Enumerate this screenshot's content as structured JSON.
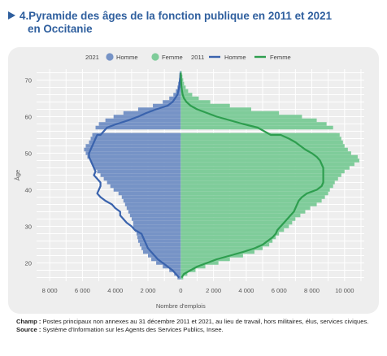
{
  "figure": {
    "number": "4.",
    "title_line1": "Pyramide des âges de la fonction publique en 2011 et 2021",
    "title_line2": "en Occitanie"
  },
  "legend": {
    "group_2021": "2021",
    "group_2011": "2011",
    "homme": "Homme",
    "femme": "Femme"
  },
  "footnotes": {
    "champ_label": "Champ :",
    "champ_text": " Postes principaux non annexes au 31 décembre 2011 et 2021, au lieu de travail, hors militaires, élus, services civiques.",
    "source_label": "Source :",
    "source_text": " Système d'Information sur les Agents des Services Publics, Insee."
  },
  "colors": {
    "title": "#2f5f9e",
    "men_2021": "#7693c6",
    "women_2021": "#7fcc9a",
    "men_2011": "#3a63ad",
    "women_2011": "#2e9e4f",
    "grid": "#ffffff",
    "axis_text": "#555555",
    "panel": "#eeeeee"
  },
  "chart_data": {
    "type": "bar",
    "orientation": "horizontal-pyramid",
    "xlabel": "Nombre d'emplois",
    "ylabel": "Âge",
    "x_ticks": [
      {
        "value": -8000,
        "label": "8 000"
      },
      {
        "value": -6000,
        "label": "6 000"
      },
      {
        "value": -4000,
        "label": "4 000"
      },
      {
        "value": -2000,
        "label": "2 000"
      },
      {
        "value": 0,
        "label": "0"
      },
      {
        "value": 2000,
        "label": "2 000"
      },
      {
        "value": 4000,
        "label": "4 000"
      },
      {
        "value": 6000,
        "label": "6 000"
      },
      {
        "value": 8000,
        "label": "8 000"
      },
      {
        "value": 10000,
        "label": "10 000"
      }
    ],
    "y_ticks": [
      20,
      30,
      40,
      50,
      60,
      70
    ],
    "xlim": [
      -8800,
      11200
    ],
    "ylim": [
      15,
      73
    ],
    "grid": true,
    "legend_position": "top",
    "ages": [
      16,
      17,
      18,
      19,
      20,
      21,
      22,
      23,
      24,
      25,
      26,
      27,
      28,
      29,
      30,
      31,
      32,
      33,
      34,
      35,
      36,
      37,
      38,
      39,
      40,
      41,
      42,
      43,
      44,
      45,
      46,
      47,
      48,
      49,
      50,
      51,
      52,
      53,
      54,
      55,
      55,
      57,
      58,
      59,
      60,
      61,
      62,
      63,
      64,
      65,
      66,
      67,
      68,
      69,
      70,
      71,
      72
    ],
    "series": [
      {
        "name": "Homme",
        "year": "2021",
        "kind": "bar",
        "values": [
          200,
          400,
          700,
          1100,
          1500,
          1800,
          2000,
          2300,
          2400,
          2500,
          2600,
          2650,
          2700,
          2800,
          2900,
          2900,
          3000,
          3100,
          3200,
          3300,
          3400,
          3500,
          3600,
          3800,
          4100,
          4300,
          4500,
          4700,
          4900,
          5100,
          5300,
          5400,
          5500,
          5700,
          5800,
          5900,
          5800,
          5600,
          5500,
          5400,
          5300,
          5200,
          5000,
          4600,
          4100,
          3500,
          2600,
          1700,
          1100,
          700,
          450,
          300,
          200,
          150,
          100,
          80,
          60
        ]
      },
      {
        "name": "Femme",
        "year": "2021",
        "kind": "bar",
        "values": [
          150,
          400,
          900,
          1500,
          2300,
          3000,
          3800,
          4500,
          5000,
          5400,
          5600,
          5800,
          6000,
          6300,
          6600,
          6800,
          7000,
          7300,
          7600,
          7900,
          8300,
          8600,
          8800,
          9000,
          9100,
          9300,
          9400,
          9600,
          9800,
          10000,
          10300,
          10600,
          10900,
          10800,
          10400,
          10200,
          10000,
          9900,
          9800,
          9700,
          9500,
          9300,
          8900,
          8300,
          7400,
          6000,
          4300,
          3000,
          1800,
          1100,
          700,
          450,
          300,
          200,
          150,
          100,
          60
        ]
      },
      {
        "name": "Homme",
        "year": "2011",
        "kind": "line",
        "values": [
          100,
          300,
          500,
          800,
          1100,
          1400,
          1600,
          1800,
          2000,
          2100,
          2200,
          2300,
          2400,
          2800,
          3000,
          3300,
          3500,
          3700,
          3700,
          4000,
          4200,
          4600,
          4900,
          5100,
          5000,
          4900,
          4900,
          5100,
          5300,
          5200,
          5300,
          5400,
          5500,
          5600,
          5600,
          5500,
          5400,
          5300,
          5200,
          5100,
          4900,
          4500,
          3900,
          3200,
          2600,
          2100,
          1500,
          800,
          500,
          350,
          200,
          150,
          100,
          80,
          50,
          30,
          20
        ]
      },
      {
        "name": "Femme",
        "year": "2011",
        "kind": "line",
        "values": [
          50,
          200,
          600,
          1000,
          1600,
          2200,
          3000,
          3800,
          4500,
          5000,
          5300,
          5600,
          5800,
          5900,
          6100,
          6300,
          6500,
          6700,
          6900,
          7000,
          7100,
          7200,
          7400,
          7700,
          8300,
          8600,
          8700,
          8700,
          8700,
          8700,
          8700,
          8600,
          8500,
          8300,
          8000,
          7600,
          7300,
          7000,
          6600,
          6100,
          5500,
          4700,
          3800,
          3000,
          2200,
          1600,
          1000,
          600,
          350,
          200,
          120,
          80,
          50,
          30,
          20,
          10,
          5
        ]
      }
    ]
  }
}
